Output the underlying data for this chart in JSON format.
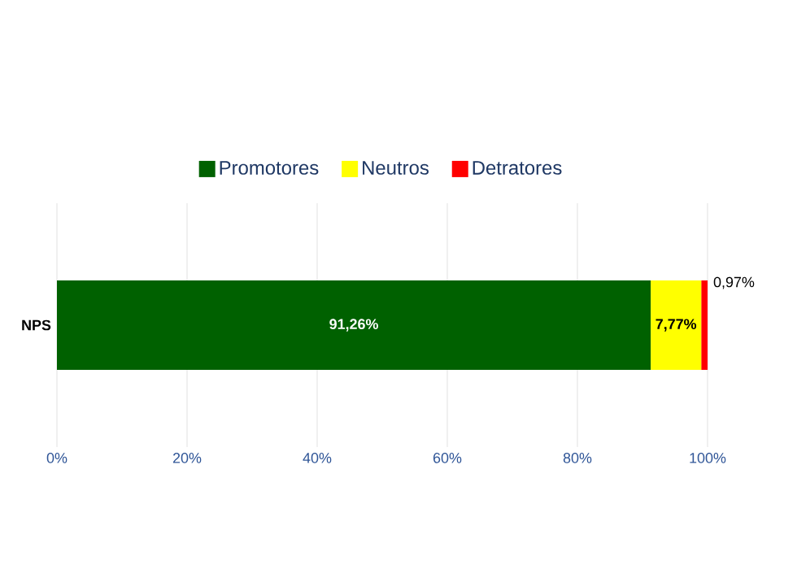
{
  "chart_data": {
    "type": "bar",
    "orientation": "horizontal",
    "stacked": true,
    "categories": [
      "NPS"
    ],
    "series": [
      {
        "name": "Promotores",
        "color": "#006100",
        "values": [
          91.26
        ],
        "value_labels": [
          "91,26%"
        ]
      },
      {
        "name": "Neutros",
        "color": "#ffff00",
        "values": [
          7.77
        ],
        "value_labels": [
          "7,77%"
        ]
      },
      {
        "name": "Detratores",
        "color": "#ff0000",
        "values": [
          0.97
        ],
        "value_labels": [
          "0,97%"
        ]
      }
    ],
    "xlim": [
      0,
      100
    ],
    "xticks": [
      {
        "value": 0,
        "label": "0%"
      },
      {
        "value": 20,
        "label": "20%"
      },
      {
        "value": 40,
        "label": "40%"
      },
      {
        "value": 60,
        "label": "60%"
      },
      {
        "value": 80,
        "label": "80%"
      },
      {
        "value": 100,
        "label": "100%"
      }
    ],
    "grid": "x",
    "legend": "top"
  }
}
